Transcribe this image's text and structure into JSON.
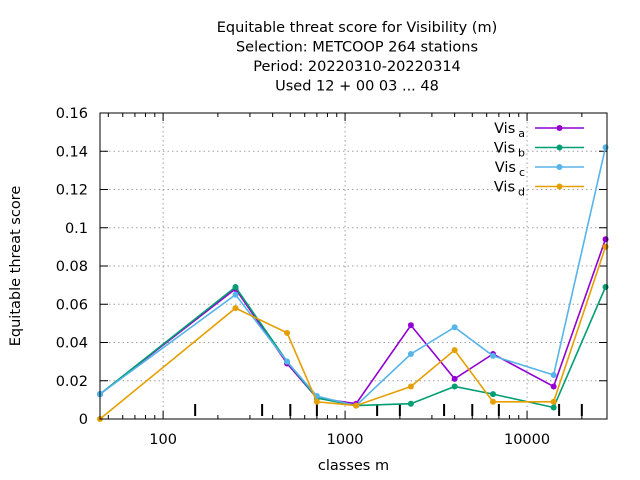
{
  "chart_data": {
    "type": "line",
    "title_lines": [
      "Equitable threat score  for Visibility (m)",
      "Selection: METCOOP    264 stations",
      "Period: 20220310-20220314",
      "Used  12 + 00 03 ... 48"
    ],
    "xlabel": "classes m",
    "ylabel": "Equitable threat score",
    "x_scale": "log",
    "xlim": [
      45,
      27500
    ],
    "ylim": [
      0,
      0.16
    ],
    "x_ticks": [
      100,
      1000,
      10000
    ],
    "x_tick_labels": [
      "100",
      "1000",
      "10000"
    ],
    "y_ticks": [
      0,
      0.02,
      0.04,
      0.06,
      0.08,
      0.1,
      0.12,
      0.14,
      0.16
    ],
    "y_tick_labels": [
      "0",
      "0.02",
      "0.04",
      "0.06",
      "0.08",
      "0.1",
      "0.12",
      "0.14",
      "0.16"
    ],
    "class_marks": [
      150,
      350,
      500,
      700,
      1500,
      2000,
      3500,
      5000,
      7000,
      15000,
      20000
    ],
    "grid": true,
    "legend_position": "top-right",
    "x": [
      45,
      250,
      480,
      700,
      1150,
      2300,
      4000,
      6500,
      14000,
      27000
    ],
    "series": [
      {
        "name": "Vis",
        "sub": "a",
        "color": "#9400d3",
        "values": [
          0.013,
          0.068,
          0.029,
          0.011,
          0.008,
          0.049,
          0.021,
          0.034,
          0.017,
          0.094
        ]
      },
      {
        "name": "Vis",
        "sub": "b",
        "color": "#009e73",
        "values": [
          0.013,
          0.069,
          0.03,
          0.011,
          0.007,
          0.008,
          0.017,
          0.013,
          0.006,
          0.069
        ]
      },
      {
        "name": "Vis",
        "sub": "c",
        "color": "#56b4e9",
        "values": [
          0.013,
          0.065,
          0.03,
          0.012,
          0.007,
          0.034,
          0.048,
          0.033,
          0.023,
          0.142
        ]
      },
      {
        "name": "Vis",
        "sub": "d",
        "color": "#e69f00",
        "values": [
          0.0,
          0.058,
          0.045,
          0.009,
          0.007,
          0.017,
          0.036,
          0.009,
          0.009,
          0.09
        ]
      }
    ]
  }
}
